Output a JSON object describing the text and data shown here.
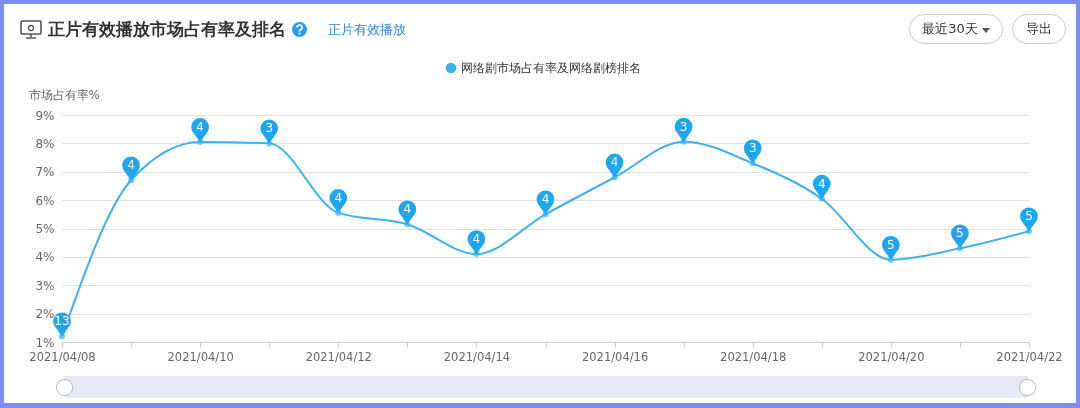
{
  "chart_data": {
    "type": "line",
    "title": "正片有效播放市场占有率及排名",
    "ylabel": "市场占有率%",
    "annotations": [
      "正片有效播放",
      "最近30天",
      "导出",
      {
        "text": "13",
        "x": "2021-04-08",
        "y": 1.2
      },
      {
        "text": "4",
        "x": "2021-04-09",
        "y": 6.7
      },
      {
        "text": "4",
        "x": "2021-04-10",
        "y": 8.05
      },
      {
        "text": "3",
        "x": "2021-04-11",
        "y": 8.0
      },
      {
        "text": "4",
        "x": "2021-04-12",
        "y": 5.55
      },
      {
        "text": "4",
        "x": "2021-04-13",
        "y": 5.15
      },
      {
        "text": "4",
        "x": "2021-04-14",
        "y": 4.1
      },
      {
        "text": "4",
        "x": "2021-04-15",
        "y": 5.5
      },
      {
        "text": "4",
        "x": "2021-04-16",
        "y": 6.8
      },
      {
        "text": "3",
        "x": "2021-04-17",
        "y": 8.06
      },
      {
        "text": "3",
        "x": "2021-04-18",
        "y": 7.3
      },
      {
        "text": "4",
        "x": "2021-04-19",
        "y": 6.05
      },
      {
        "text": "5",
        "x": "2021-04-20",
        "y": 3.9
      },
      {
        "text": "5",
        "x": "2021-04-21",
        "y": 4.3
      },
      {
        "text": "5",
        "x": "2021-04-22",
        "y": 4.9
      }
    ],
    "x": [
      "2021-04-08",
      "2021-04-09",
      "2021-04-10",
      "2021-04-11",
      "2021-04-12",
      "2021-04-13",
      "2021-04-14",
      "2021-04-15",
      "2021-04-16",
      "2021-04-17",
      "2021-04-18",
      "2021-04-19",
      "2021-04-20",
      "2021-04-21",
      "2021-04-22"
    ],
    "series": [
      {
        "name": "网络剧市场占有率及网络剧榜排名",
        "color": "#3fb0ee",
        "values": [
          1.2,
          6.7,
          8.05,
          8.0,
          5.55,
          5.15,
          4.1,
          5.5,
          6.8,
          8.06,
          7.3,
          6.05,
          3.9,
          4.3,
          4.9
        ]
      }
    ],
    "xlim": [
      "2021-04-08",
      "2021-04-22"
    ],
    "xticks": [
      {
        "value": "2021-04-08",
        "label": "2021/04/08"
      },
      {
        "value": "2021-04-09",
        "label": null
      },
      {
        "value": "2021-04-10",
        "label": "2021/04/10"
      },
      {
        "value": "2021-04-11",
        "label": null
      },
      {
        "value": "2021-04-12",
        "label": "2021/04/12"
      },
      {
        "value": "2021-04-13",
        "label": null
      },
      {
        "value": "2021-04-14",
        "label": "2021/04/14"
      },
      {
        "value": "2021-04-15",
        "label": null
      },
      {
        "value": "2021-04-16",
        "label": "2021/04/16"
      },
      {
        "value": "2021-04-17",
        "label": null
      },
      {
        "value": "2021-04-18",
        "label": "2021/04/18"
      },
      {
        "value": "2021-04-19",
        "label": null
      },
      {
        "value": "2021-04-20",
        "label": "2021/04/20"
      },
      {
        "value": "2021-04-21",
        "label": null
      },
      {
        "value": "2021-04-22",
        "label": "2021/04/22"
      }
    ],
    "ylim": [
      1,
      9
    ],
    "yticks": [
      {
        "value": 1,
        "label": "1%"
      },
      {
        "value": 2,
        "label": "2%"
      },
      {
        "value": 3,
        "label": "3%"
      },
      {
        "value": 4,
        "label": "4%"
      },
      {
        "value": 5,
        "label": "5%"
      },
      {
        "value": 6,
        "label": "6%"
      },
      {
        "value": 7,
        "label": "7%"
      },
      {
        "value": 8,
        "label": "8%"
      },
      {
        "value": 9,
        "label": "9%"
      }
    ],
    "grid": "y",
    "legend": "top",
    "marker": "circle",
    "line_style": "solid"
  }
}
